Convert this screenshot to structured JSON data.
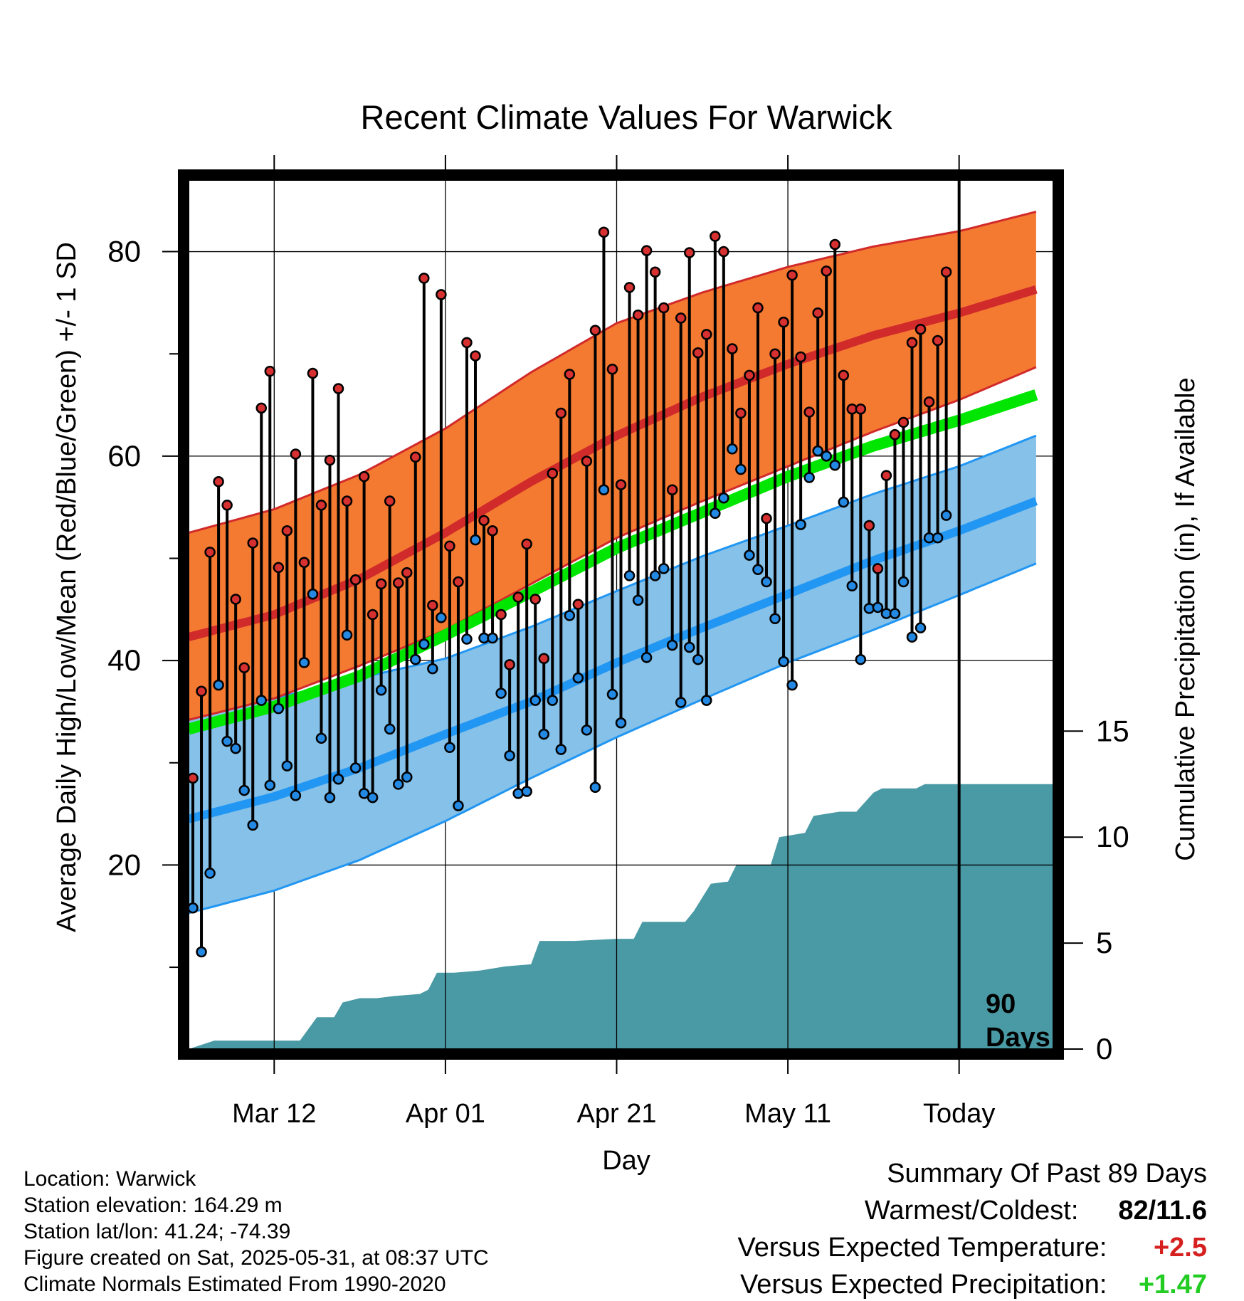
{
  "chart_data": {
    "type": "line",
    "title": "Recent Climate Values For Warwick",
    "xlabel": "Day",
    "ylabel": "Average Daily High/Low/Mean (Red/Blue/Green) +/- 1 SD",
    "y2label": "Cumulative Precipitation (in), If Available",
    "xlim": [
      0,
      101
    ],
    "ylim": [
      2,
      87
    ],
    "y2lim": [
      0,
      41
    ],
    "x_ticks": [
      {
        "x": 10,
        "label": "Mar 12"
      },
      {
        "x": 30,
        "label": "Apr 01"
      },
      {
        "x": 50,
        "label": "Apr 21"
      },
      {
        "x": 70,
        "label": "May 11"
      },
      {
        "x": 90,
        "label": "Today"
      }
    ],
    "y_ticks": [
      20,
      40,
      60,
      80
    ],
    "y2_ticks": [
      0,
      5,
      10,
      15
    ],
    "today_marker": {
      "x": 90,
      "label_line1": "90",
      "label_line2": "Days"
    },
    "normals": {
      "high_mean": [
        [
          0,
          42.3
        ],
        [
          10,
          44.5
        ],
        [
          20,
          48
        ],
        [
          30,
          52.5
        ],
        [
          40,
          57.5
        ],
        [
          50,
          62
        ],
        [
          60,
          65.8
        ],
        [
          70,
          69
        ],
        [
          80,
          71.8
        ],
        [
          90,
          74
        ],
        [
          99,
          76.3
        ]
      ],
      "high_upper": [
        [
          0,
          52.5
        ],
        [
          10,
          54.8
        ],
        [
          20,
          58.2
        ],
        [
          30,
          62.7
        ],
        [
          40,
          68.2
        ],
        [
          50,
          73
        ],
        [
          60,
          76
        ],
        [
          70,
          78.5
        ],
        [
          80,
          80.5
        ],
        [
          90,
          82
        ],
        [
          99,
          83.9
        ]
      ],
      "high_lower": [
        [
          0,
          34.2
        ],
        [
          10,
          36.3
        ],
        [
          20,
          39.5
        ],
        [
          30,
          43
        ],
        [
          40,
          47.5
        ],
        [
          50,
          52
        ],
        [
          60,
          55.6
        ],
        [
          70,
          59
        ],
        [
          80,
          62.4
        ],
        [
          90,
          65.5
        ],
        [
          99,
          68.7
        ]
      ],
      "avg_mean": [
        [
          0,
          33.3
        ],
        [
          10,
          35.5
        ],
        [
          20,
          38.5
        ],
        [
          30,
          42.5
        ],
        [
          40,
          46.7
        ],
        [
          50,
          51
        ],
        [
          60,
          54.5
        ],
        [
          70,
          58
        ],
        [
          80,
          61
        ],
        [
          90,
          63.5
        ],
        [
          99,
          66
        ]
      ],
      "low_mean": [
        [
          0,
          24.5
        ],
        [
          10,
          26.7
        ],
        [
          20,
          29.5
        ],
        [
          30,
          32.8
        ],
        [
          40,
          36
        ],
        [
          50,
          39.8
        ],
        [
          60,
          43.2
        ],
        [
          70,
          46.5
        ],
        [
          80,
          49.8
        ],
        [
          90,
          52.7
        ],
        [
          99,
          55.6
        ]
      ],
      "low_upper": [
        [
          0,
          34.3
        ],
        [
          10,
          36.3
        ],
        [
          20,
          38.3
        ],
        [
          30,
          40.2
        ],
        [
          40,
          43.3
        ],
        [
          50,
          46.8
        ],
        [
          60,
          50.2
        ],
        [
          70,
          53.2
        ],
        [
          80,
          56.3
        ],
        [
          90,
          59
        ],
        [
          99,
          62
        ]
      ],
      "low_lower": [
        [
          0,
          15.3
        ],
        [
          10,
          17.5
        ],
        [
          20,
          20.5
        ],
        [
          30,
          24.3
        ],
        [
          40,
          28.5
        ],
        [
          50,
          32.5
        ],
        [
          60,
          36.2
        ],
        [
          70,
          39.8
        ],
        [
          80,
          43
        ],
        [
          90,
          46.4
        ],
        [
          99,
          49.5
        ]
      ]
    },
    "series": [
      {
        "name": "High",
        "values": [
          28.5,
          37,
          50.6,
          57.5,
          55.2,
          46,
          39.3,
          51.5,
          64.7,
          68.3,
          49.1,
          52.7,
          60.2,
          49.6,
          68.1,
          55.2,
          59.6,
          66.6,
          55.6,
          47.9,
          58,
          44.5,
          47.5,
          55.6,
          47.6,
          48.6,
          59.9,
          77.4,
          45.4,
          75.8,
          51.2,
          47.7,
          71.1,
          69.8,
          53.7,
          52.7,
          44.5,
          39.6,
          46.2,
          51.4,
          46,
          40.2,
          58.3,
          64.2,
          68,
          45.5,
          59.5,
          72.3,
          81.9,
          68.5,
          57.2,
          76.5,
          73.8,
          80.1,
          78,
          74.5,
          56.7,
          73.5,
          79.9,
          70.1,
          71.9,
          81.5,
          80,
          70.5,
          64.2,
          67.9,
          74.5,
          53.9,
          70,
          73.1,
          77.7,
          69.7,
          64.3,
          74,
          78.1,
          80.7,
          67.9,
          64.6,
          64.6,
          53.2,
          49,
          58.1,
          62.1,
          63.3,
          71.1,
          72.4,
          65.3,
          71.3,
          78
        ]
      },
      {
        "name": "Low",
        "values": [
          15.8,
          11.5,
          19.2,
          37.6,
          32.1,
          31.4,
          27.3,
          23.9,
          36.1,
          27.8,
          35.3,
          29.7,
          26.8,
          39.8,
          46.5,
          32.4,
          26.6,
          28.4,
          42.5,
          29.5,
          27,
          26.6,
          37.1,
          33.3,
          27.9,
          28.6,
          40.1,
          41.6,
          39.2,
          44.2,
          31.5,
          25.8,
          42.1,
          51.8,
          42.2,
          42.2,
          36.8,
          30.7,
          27,
          27.2,
          36.1,
          32.8,
          36.1,
          31.3,
          44.4,
          38.3,
          33.2,
          27.6,
          56.7,
          36.7,
          33.9,
          48.3,
          45.9,
          40.3,
          48.3,
          49,
          41.5,
          35.9,
          41.3,
          40.1,
          36.1,
          54.4,
          55.9,
          60.7,
          58.7,
          50.3,
          48.9,
          47.7,
          44.1,
          39.9,
          37.6,
          53.3,
          57.9,
          60.5,
          60,
          59.1,
          55.5,
          47.3,
          40.1,
          45.1,
          45.2,
          44.6,
          44.6,
          47.7,
          42.3,
          43.2,
          52,
          52,
          54.2
        ]
      },
      {
        "name": "Cumulative Precipitation",
        "values": [
          [
            0,
            0
          ],
          [
            3,
            0.4
          ],
          [
            13,
            0.4
          ],
          [
            15,
            1.5
          ],
          [
            17,
            1.5
          ],
          [
            18,
            2.2
          ],
          [
            20,
            2.4
          ],
          [
            22,
            2.4
          ],
          [
            24,
            2.5
          ],
          [
            27,
            2.6
          ],
          [
            28,
            2.8
          ],
          [
            29,
            3.6
          ],
          [
            31,
            3.6
          ],
          [
            34,
            3.7
          ],
          [
            37,
            3.9
          ],
          [
            40,
            4
          ],
          [
            41,
            5.1
          ],
          [
            45,
            5.1
          ],
          [
            50,
            5.2
          ],
          [
            52,
            5.2
          ],
          [
            53,
            6
          ],
          [
            58,
            6
          ],
          [
            59,
            6.5
          ],
          [
            61,
            7.8
          ],
          [
            63,
            7.9
          ],
          [
            64,
            8.7
          ],
          [
            68,
            8.7
          ],
          [
            69,
            10
          ],
          [
            72,
            10.2
          ],
          [
            73,
            11
          ],
          [
            76,
            11.2
          ],
          [
            78,
            11.2
          ],
          [
            80,
            12.1
          ],
          [
            81,
            12.3
          ],
          [
            85,
            12.3
          ],
          [
            86,
            12.5
          ],
          [
            89,
            12.5
          ],
          [
            101,
            12.5
          ]
        ]
      }
    ]
  },
  "footer": {
    "location": "Location: Warwick",
    "elevation": "Station elevation: 164.29 m",
    "latlon": "Station lat/lon: 41.24; -74.39",
    "created": "Figure created on Sat, 2025-05-31, at 08:37 UTC",
    "normals": "Climate Normals Estimated From 1990-2020"
  },
  "summary": {
    "title": "Summary Of Past 89 Days",
    "warm_cold_label": "Warmest/Coldest:",
    "warm_cold_value": "82/11.6",
    "temp_label": "Versus Expected Temperature:",
    "temp_value": "+2.5",
    "precip_label": "Versus Expected Precipitation:",
    "precip_value": "+1.47"
  },
  "colors": {
    "high_band": "#f47a32",
    "high_mean": "#d12a2a",
    "avg_mean": "#00e600",
    "low_band": "#85c1e8",
    "low_mean": "#2196f3",
    "band_edge_red": "#d12a2a",
    "band_edge_blue": "#2196f3",
    "precip": "#4a9aa5",
    "high_dot": "#d63030",
    "low_dot": "#2389e3",
    "summary_temp": "#d62020",
    "summary_precip": "#22cc22"
  }
}
